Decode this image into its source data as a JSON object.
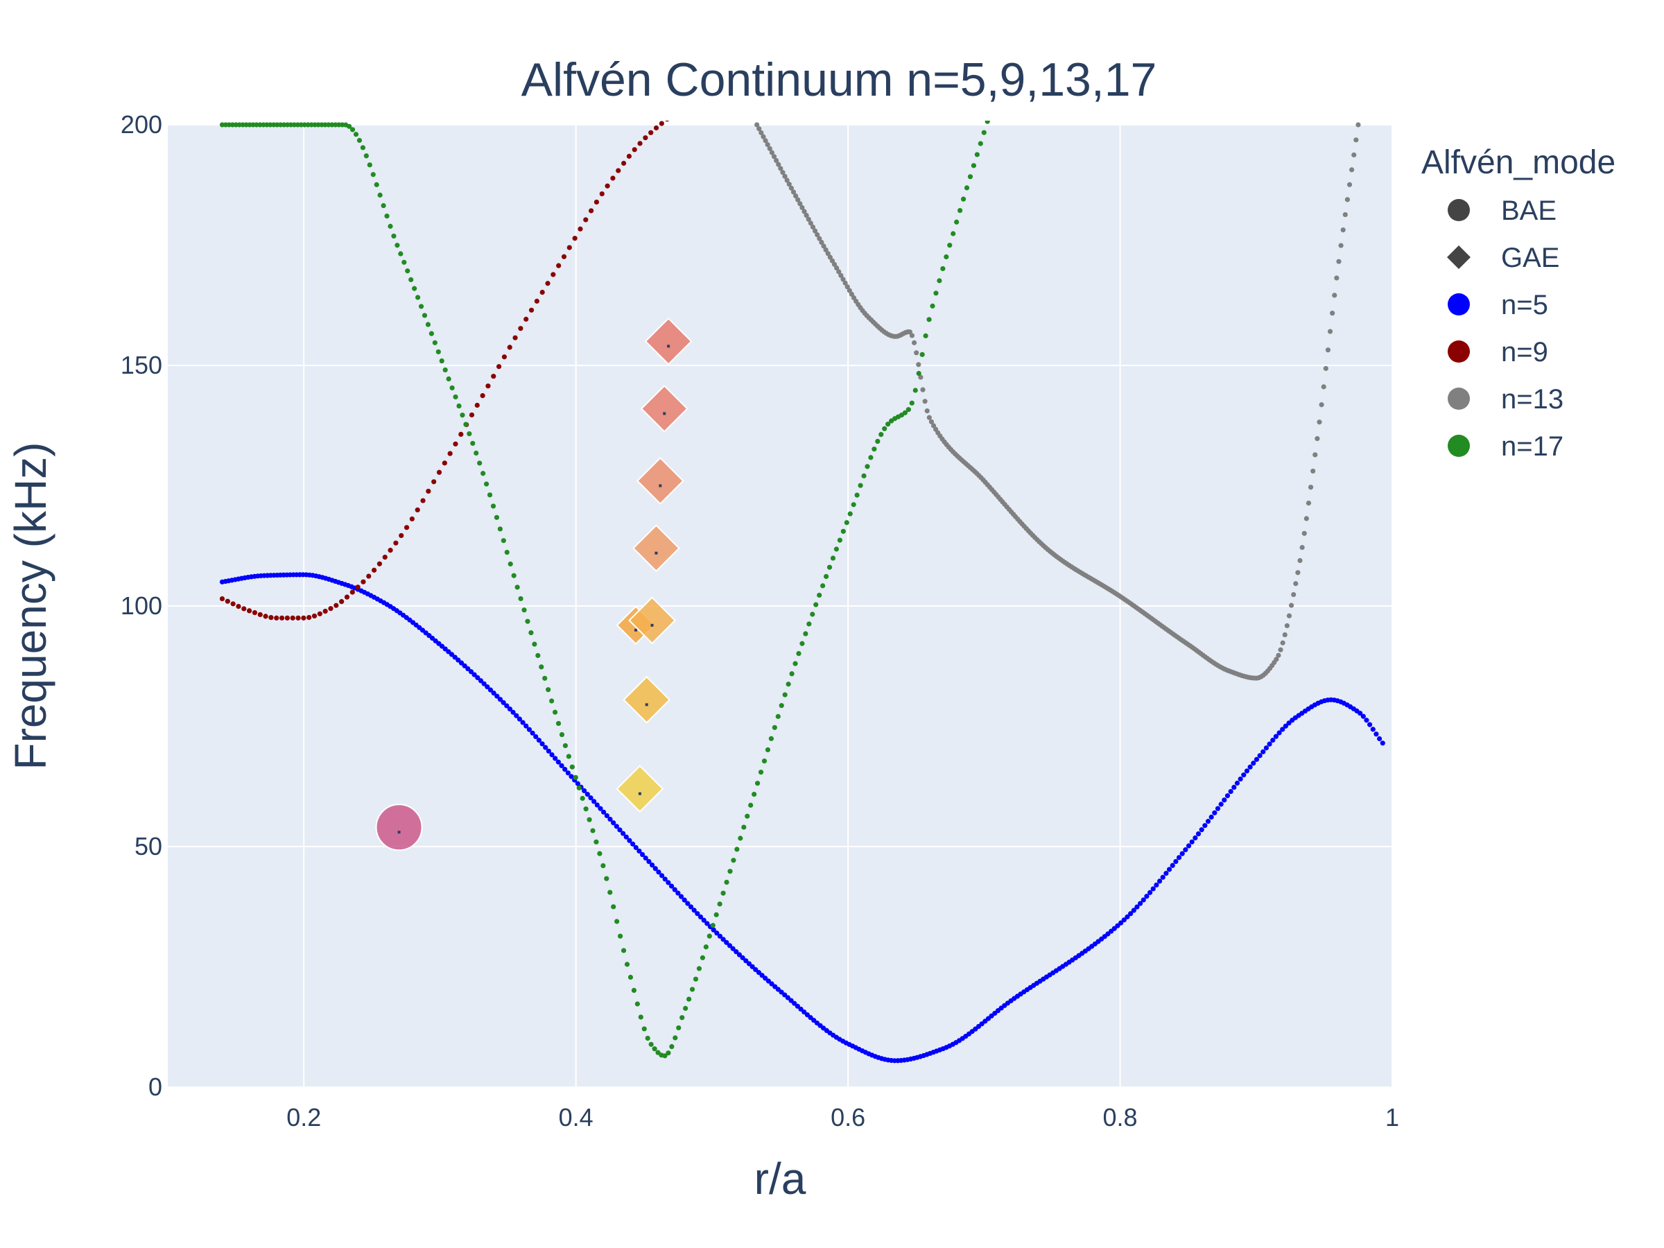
{
  "chart_data": {
    "type": "scatter",
    "title": "Alfvén Continuum n=5,9,13,17",
    "xlabel": "r/a",
    "ylabel": "Frequency (kHz)",
    "xlim": [
      0.1,
      1.0
    ],
    "ylim": [
      0,
      200
    ],
    "x_ticks": [
      "0.2",
      "0.4",
      "0.6",
      "0.8",
      "1"
    ],
    "x_tick_values": [
      0.2,
      0.4,
      0.6,
      0.8,
      1.0
    ],
    "y_ticks": [
      "0",
      "50",
      "100",
      "150",
      "200"
    ],
    "y_tick_values": [
      0,
      50,
      100,
      150,
      200
    ],
    "grid": true,
    "background": "#e5ecf6",
    "legend": {
      "title": "Alfvén_mode",
      "placement": "right",
      "entries": [
        {
          "label": "BAE",
          "symbol": "circle",
          "color": "#444444"
        },
        {
          "label": "GAE",
          "symbol": "diamond",
          "color": "#444444"
        },
        {
          "label": "n=5",
          "symbol": "circle",
          "color": "#0000ff"
        },
        {
          "label": "n=9",
          "symbol": "circle",
          "color": "#8b0000"
        },
        {
          "label": "n=13",
          "symbol": "circle",
          "color": "#808080"
        },
        {
          "label": "n=17",
          "symbol": "circle",
          "color": "#228b22"
        }
      ]
    },
    "series": [
      {
        "name": "n=5",
        "color": "#0000ff",
        "point_count": 360,
        "x": [
          0.14,
          0.17,
          0.2,
          0.23,
          0.26,
          0.3,
          0.35,
          0.4,
          0.45,
          0.5,
          0.55,
          0.6,
          0.635,
          0.67,
          0.72,
          0.8,
          0.85,
          0.9,
          0.93,
          0.955,
          0.975,
          0.993
        ],
        "y": [
          105,
          106.3,
          106.5,
          104.5,
          100.5,
          92,
          79,
          63.5,
          48,
          33,
          20,
          9,
          5.5,
          8,
          18,
          34,
          50,
          68,
          77,
          80.5,
          78,
          71.5
        ]
      },
      {
        "name": "n=9",
        "color": "#8b0000",
        "point_count": 85,
        "x": [
          0.14,
          0.16,
          0.18,
          0.2,
          0.22,
          0.24,
          0.27,
          0.3,
          0.33,
          0.36,
          0.39,
          0.42,
          0.45,
          0.475
        ],
        "y": [
          101.5,
          99,
          97.5,
          97.5,
          99.5,
          104,
          114,
          128,
          143,
          158,
          172,
          186,
          197,
          203
        ]
      },
      {
        "name": "n=13",
        "color": "#808080",
        "point_count": 280,
        "x": [
          0.533,
          0.56,
          0.59,
          0.615,
          0.635,
          0.645,
          0.66,
          0.7,
          0.75,
          0.8,
          0.85,
          0.88,
          0.9,
          0.915,
          0.93,
          0.945,
          0.96,
          0.975
        ],
        "y": [
          200,
          186,
          171,
          160,
          156,
          157,
          139,
          126,
          111,
          102,
          92,
          86.5,
          85,
          89,
          106,
          135,
          170,
          200
        ]
      },
      {
        "name": "n=17",
        "color": "#228b22",
        "point_count": 225,
        "x": [
          0.14,
          0.23,
          0.27,
          0.3,
          0.33,
          0.36,
          0.39,
          0.42,
          0.44,
          0.455,
          0.465,
          0.48,
          0.5,
          0.53,
          0.56,
          0.6,
          0.63,
          0.645,
          0.66,
          0.68,
          0.705
        ],
        "y": [
          200,
          200,
          174,
          152,
          129,
          101,
          73,
          46,
          23,
          9,
          6.5,
          16,
          33,
          60,
          87,
          118,
          138,
          141,
          160,
          180,
          203
        ]
      }
    ],
    "modes": [
      {
        "type": "BAE",
        "x": 0.27,
        "y": 54,
        "color": "#cc5a8a",
        "size": 60
      },
      {
        "type": "GAE",
        "x": 0.468,
        "y": 155,
        "color": "#e67b6e",
        "size": 55
      },
      {
        "type": "GAE",
        "x": 0.465,
        "y": 141,
        "color": "#e8806e",
        "size": 55
      },
      {
        "type": "GAE",
        "x": 0.462,
        "y": 126,
        "color": "#ec8f6c",
        "size": 55
      },
      {
        "type": "GAE",
        "x": 0.459,
        "y": 112,
        "color": "#f09c68",
        "size": 55
      },
      {
        "type": "GAE",
        "x": 0.444,
        "y": 96,
        "color": "#f5a63e",
        "size": 45
      },
      {
        "type": "GAE",
        "x": 0.456,
        "y": 97,
        "color": "#f5b050",
        "size": 55
      },
      {
        "type": "GAE",
        "x": 0.452,
        "y": 80.5,
        "color": "#f2bb48",
        "size": 55
      },
      {
        "type": "GAE",
        "x": 0.447,
        "y": 62,
        "color": "#f0d04a",
        "size": 55
      }
    ]
  }
}
